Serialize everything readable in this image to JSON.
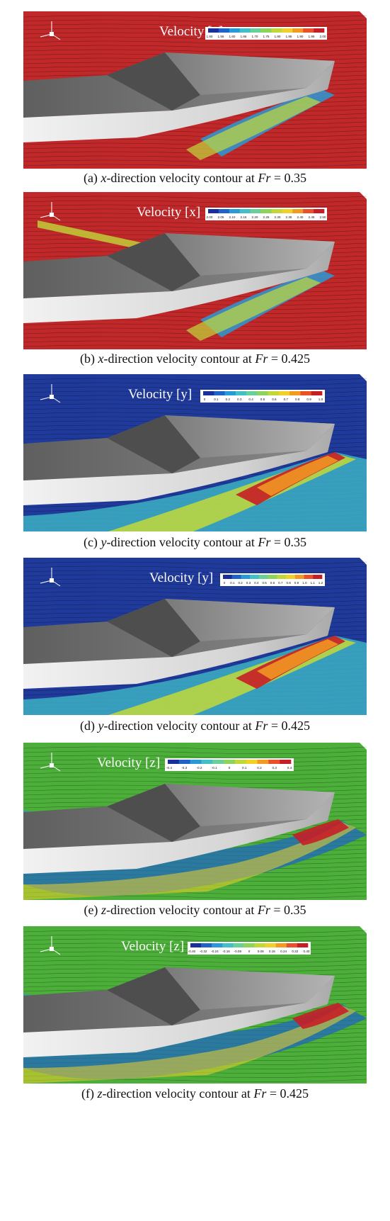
{
  "panels": [
    {
      "id": "a",
      "legend_title": "Velocity [x]",
      "ticks": [
        "1.50",
        "1.55",
        "1.60",
        "1.65",
        "1.70",
        "1.75",
        "1.80",
        "1.85",
        "1.90",
        "1.95",
        "2.00"
      ],
      "water_color": "#c0282a",
      "caption": {
        "prefix": "(a) ",
        "axis": "x",
        "middle": "-direction velocity contour at ",
        "fr": "Fr",
        "value": " = 0.35"
      }
    },
    {
      "id": "b",
      "legend_title": "Velocity [x]",
      "ticks": [
        "2.00",
        "2.05",
        "2.10",
        "2.15",
        "2.20",
        "2.25",
        "2.30",
        "2.35",
        "2.40",
        "2.45",
        "2.50"
      ],
      "water_color": "#c0282a",
      "caption": {
        "prefix": "(b) ",
        "axis": "x",
        "middle": "-direction velocity contour at ",
        "fr": "Fr",
        "value": " = 0.425"
      }
    },
    {
      "id": "c",
      "legend_title": "Velocity [y]",
      "ticks": [
        "0",
        "0.1",
        "0.2",
        "0.3",
        "0.4",
        "0.5",
        "0.6",
        "0.7",
        "0.8",
        "0.9",
        "1.0"
      ],
      "water_color": "#1f3a9a",
      "caption": {
        "prefix": "(c) ",
        "axis": "y",
        "middle": "-direction velocity contour at ",
        "fr": "Fr",
        "value": " = 0.35"
      }
    },
    {
      "id": "d",
      "legend_title": "Velocity [y]",
      "ticks": [
        "0",
        "0.1",
        "0.2",
        "0.3",
        "0.4",
        "0.5",
        "0.6",
        "0.7",
        "0.8",
        "0.9",
        "1.0",
        "1.1",
        "1.2"
      ],
      "water_color": "#1f3a9a",
      "caption": {
        "prefix": "(d) ",
        "axis": "y",
        "middle": "-direction velocity contour at ",
        "fr": "Fr",
        "value": " = 0.425"
      }
    },
    {
      "id": "e",
      "legend_title": "Velocity [z]",
      "ticks": [
        "-0.4",
        "-0.3",
        "-0.2",
        "-0.1",
        "0",
        "0.1",
        "0.2",
        "0.3",
        "0.4"
      ],
      "water_color": "#4caf3a",
      "caption": {
        "prefix": "(e) ",
        "axis": "z",
        "middle": "-direction velocity contour at ",
        "fr": "Fr",
        "value": " = 0.35"
      }
    },
    {
      "id": "f",
      "legend_title": "Velocity [z]",
      "ticks": [
        "-0.40",
        "-0.32",
        "-0.24",
        "-0.16",
        "-0.08",
        "0",
        "0.08",
        "0.16",
        "0.24",
        "0.32",
        "0.40"
      ],
      "water_color": "#4caf3a",
      "caption": {
        "prefix": "(f) ",
        "axis": "z",
        "middle": "-direction velocity contour at ",
        "fr": "Fr",
        "value": " = 0.425"
      }
    }
  ],
  "colorbar": [
    "#1b2f9c",
    "#1f62c9",
    "#2a9ad6",
    "#42c0c8",
    "#6bcf9a",
    "#8fd45a",
    "#c2d83a",
    "#f0d12a",
    "#f39a22",
    "#e8512a",
    "#c61e26"
  ]
}
